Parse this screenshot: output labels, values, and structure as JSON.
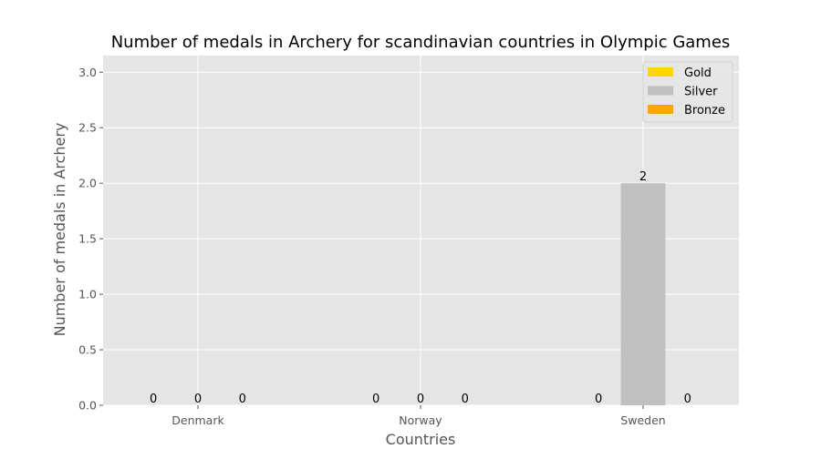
{
  "chart_data": {
    "type": "bar",
    "title": "Number of medals in Archery for scandinavian countries in Olympic Games",
    "xlabel": "Countries",
    "ylabel": "Number of medals in Archery",
    "categories": [
      "Denmark",
      "Norway",
      "Sweden"
    ],
    "series": [
      {
        "name": "Gold",
        "color": "#FFD700",
        "values": [
          0,
          0,
          0
        ]
      },
      {
        "name": "Silver",
        "color": "#C0C0C0",
        "values": [
          0,
          0,
          2
        ]
      },
      {
        "name": "Bronze",
        "color": "#FFA500",
        "values": [
          0,
          0,
          0
        ]
      }
    ],
    "ylim": [
      0,
      3.15
    ],
    "yticks": [
      "0.0",
      "0.5",
      "1.0",
      "1.5",
      "2.0",
      "2.5",
      "3.0"
    ],
    "grid": true,
    "legend_position": "top-right",
    "background": "#E5E5E5"
  }
}
